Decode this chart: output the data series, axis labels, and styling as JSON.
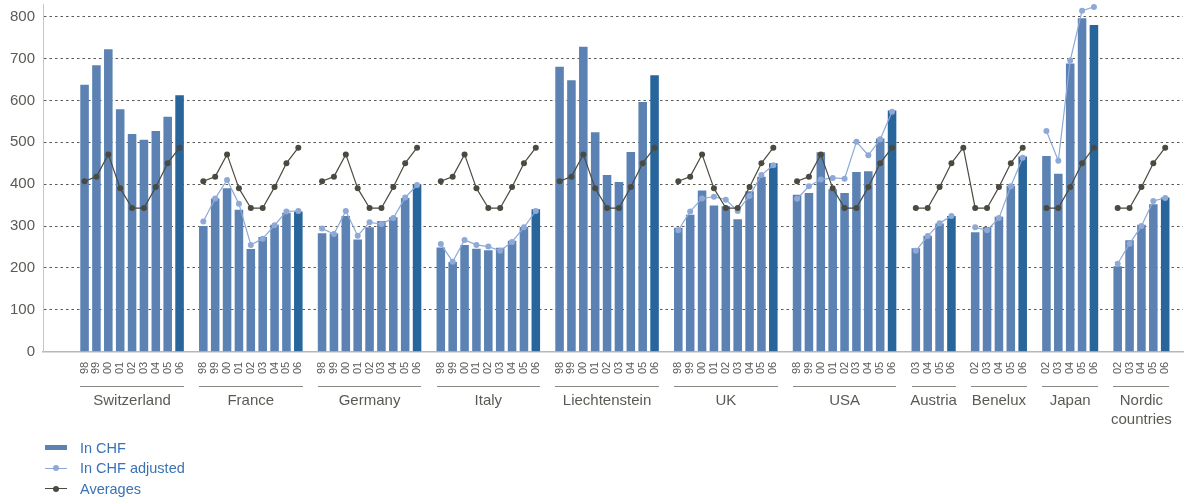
{
  "chart_data": {
    "type": "bar",
    "categories": [
      null,
      null,
      null,
      "98",
      "99",
      "00",
      "01",
      "02",
      "03",
      "04",
      "05",
      "06",
      null,
      "98",
      "99",
      "00",
      "01",
      "02",
      "03",
      "04",
      "05",
      "06",
      null,
      "98",
      "99",
      "00",
      "01",
      "02",
      "03",
      "04",
      "05",
      "06",
      null,
      "98",
      "99",
      "00",
      "01",
      "02",
      "03",
      "04",
      "05",
      "06",
      null,
      "98",
      "99",
      "00",
      "01",
      "02",
      "03",
      "04",
      "05",
      "06",
      null,
      "98",
      "99",
      "00",
      "01",
      "02",
      "03",
      "04",
      "05",
      "06",
      null,
      "98",
      "99",
      "00",
      "01",
      "02",
      "03",
      "04",
      "05",
      "06",
      null,
      "03",
      "04",
      "05",
      "06",
      null,
      "02",
      "03",
      "04",
      "05",
      "06",
      null,
      "02",
      "03",
      "04",
      "05",
      "06",
      null,
      "02",
      "03",
      "04",
      "05",
      "06",
      null
    ],
    "series": [
      {
        "name": "In CHF",
        "values": [
          null,
          null,
          null,
          637,
          684,
          722,
          579,
          520,
          506,
          527,
          561,
          612,
          null,
          300,
          366,
          390,
          339,
          245,
          274,
          303,
          332,
          335,
          null,
          283,
          282,
          324,
          268,
          297,
          312,
          321,
          367,
          400,
          null,
          249,
          214,
          255,
          246,
          242,
          248,
          265,
          298,
          340,
          null,
          680,
          648,
          728,
          524,
          422,
          405,
          477,
          596,
          660,
          null,
          296,
          327,
          385,
          349,
          347,
          316,
          383,
          418,
          450,
          null,
          375,
          379,
          476,
          388,
          379,
          429,
          431,
          509,
          576,
          null,
          247,
          277,
          306,
          324,
          null,
          285,
          298,
          322,
          396,
          466,
          null,
          467,
          425,
          688,
          796,
          780,
          null,
          204,
          266,
          303,
          352,
          368,
          null
        ],
        "colors": [
          null,
          null,
          null,
          "#5b82b3",
          "#5b82b3",
          "#5b82b3",
          "#5b82b3",
          "#5b82b3",
          "#5b82b3",
          "#5b82b3",
          "#5b82b3",
          "#27659a",
          null,
          "#5b82b3",
          "#5b82b3",
          "#5b82b3",
          "#5b82b3",
          "#5b82b3",
          "#5b82b3",
          "#5b82b3",
          "#5b82b3",
          "#27659a",
          null,
          "#5b82b3",
          "#5b82b3",
          "#5b82b3",
          "#5b82b3",
          "#5b82b3",
          "#5b82b3",
          "#5b82b3",
          "#5b82b3",
          "#27659a",
          null,
          "#5b82b3",
          "#5b82b3",
          "#5b82b3",
          "#5b82b3",
          "#5b82b3",
          "#5b82b3",
          "#5b82b3",
          "#5b82b3",
          "#27659a",
          null,
          "#5b82b3",
          "#5b82b3",
          "#5b82b3",
          "#5b82b3",
          "#5b82b3",
          "#5b82b3",
          "#5b82b3",
          "#5b82b3",
          "#27659a",
          null,
          "#5b82b3",
          "#5b82b3",
          "#5b82b3",
          "#5b82b3",
          "#5b82b3",
          "#5b82b3",
          "#5b82b3",
          "#5b82b3",
          "#27659a",
          null,
          "#5b82b3",
          "#5b82b3",
          "#5b82b3",
          "#5b82b3",
          "#5b82b3",
          "#5b82b3",
          "#5b82b3",
          "#5b82b3",
          "#27659a",
          null,
          "#5b82b3",
          "#5b82b3",
          "#5b82b3",
          "#27659a",
          null,
          "#5b82b3",
          "#5b82b3",
          "#5b82b3",
          "#5b82b3",
          "#27659a",
          null,
          "#5b82b3",
          "#5b82b3",
          "#5b82b3",
          "#5b82b3",
          "#27659a",
          null,
          "#5b82b3",
          "#5b82b3",
          "#5b82b3",
          "#5b82b3",
          "#27659a",
          null
        ]
      },
      {
        "name": "In CHF adjusted",
        "type": "line",
        "color": "#8ea9d8",
        "values": [
          null,
          null,
          null,
          null,
          null,
          null,
          null,
          null,
          null,
          null,
          null,
          null,
          null,
          311,
          366,
          410,
          353,
          255,
          270,
          302,
          335,
          336,
          null,
          294,
          281,
          336,
          277,
          309,
          305,
          319,
          368,
          398,
          null,
          257,
          215,
          267,
          255,
          251,
          241,
          262,
          297,
          336,
          null,
          null,
          null,
          null,
          null,
          null,
          null,
          null,
          null,
          null,
          null,
          290,
          335,
          366,
          370,
          363,
          336,
          372,
          422,
          445,
          null,
          365,
          395,
          411,
          415,
          413,
          501,
          469,
          507,
          573,
          null,
          241,
          276,
          307,
          324,
          null,
          297,
          290,
          319,
          395,
          463,
          null,
          527,
          456,
          695,
          814,
          823,
          null,
          210,
          258,
          300,
          360,
          367,
          null
        ]
      },
      {
        "name": "Averages",
        "type": "line",
        "color": "#4a4a40",
        "values": [
          null,
          null,
          null,
          407,
          418,
          471,
          390,
          343,
          343,
          393,
          450,
          487,
          null,
          407,
          418,
          471,
          390,
          343,
          343,
          393,
          450,
          487,
          null,
          407,
          418,
          471,
          390,
          343,
          343,
          393,
          450,
          487,
          null,
          407,
          418,
          471,
          390,
          343,
          343,
          393,
          450,
          487,
          null,
          407,
          418,
          471,
          390,
          343,
          343,
          393,
          450,
          487,
          null,
          407,
          418,
          471,
          390,
          343,
          343,
          393,
          450,
          487,
          null,
          407,
          418,
          471,
          390,
          343,
          343,
          393,
          450,
          487,
          null,
          343,
          343,
          393,
          450,
          487,
          343,
          343,
          393,
          450,
          487,
          null,
          343,
          343,
          393,
          450,
          487,
          null,
          343,
          343,
          393,
          450,
          487,
          null
        ]
      }
    ],
    "ylim": [
      0,
      830
    ],
    "yticks": [
      0,
      100,
      200,
      300,
      400,
      500,
      600,
      700,
      800
    ],
    "grid": "y",
    "legend": "bottom left",
    "marker": "circle",
    "line_style": "solid",
    "annotations": [
      "Switzerland",
      "France",
      "Germany",
      "Italy",
      "Liechtenstein",
      "UK",
      "USA",
      "Austria",
      "Benelux",
      "Japan",
      "Nordic countries"
    ]
  }
}
